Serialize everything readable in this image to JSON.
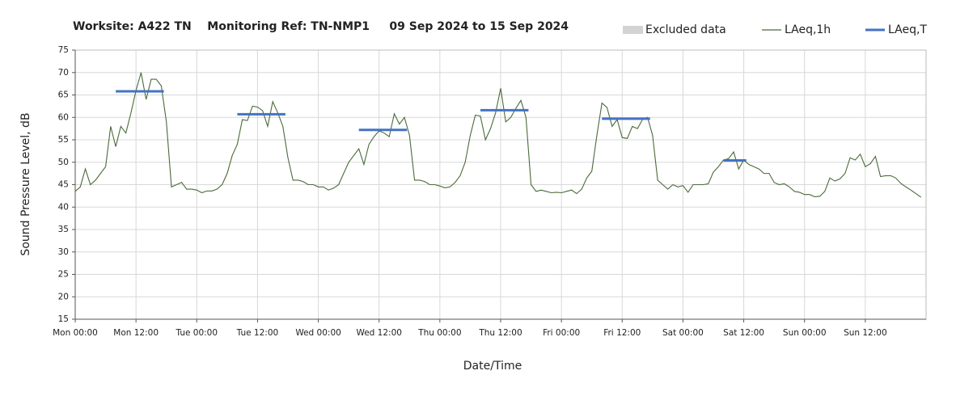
{
  "chart_data": {
    "type": "line",
    "title": "Worksite: A422 TN    Monitoring Ref: TN-NMP1     09 Sep 2024 to 15 Sep 2024",
    "xlabel": "Date/Time",
    "ylabel": "Sound Pressure Level, dB",
    "xlim": [
      0,
      168
    ],
    "ylim": [
      15,
      75
    ],
    "yticks": [
      15,
      20,
      25,
      30,
      35,
      40,
      45,
      50,
      55,
      60,
      65,
      70,
      75
    ],
    "xticks": [
      {
        "value": 0,
        "label": "Mon 00:00"
      },
      {
        "value": 12,
        "label": "Mon 12:00"
      },
      {
        "value": 24,
        "label": "Tue 00:00"
      },
      {
        "value": 36,
        "label": "Tue 12:00"
      },
      {
        "value": 48,
        "label": "Wed 00:00"
      },
      {
        "value": 60,
        "label": "Wed 12:00"
      },
      {
        "value": 72,
        "label": "Thu 00:00"
      },
      {
        "value": 84,
        "label": "Thu 12:00"
      },
      {
        "value": 96,
        "label": "Fri 00:00"
      },
      {
        "value": 108,
        "label": "Fri 12:00"
      },
      {
        "value": 120,
        "label": "Sat 00:00"
      },
      {
        "value": 132,
        "label": "Sat 12:00"
      },
      {
        "value": 144,
        "label": "Sun 00:00"
      },
      {
        "value": 156,
        "label": "Sun 12:00"
      }
    ],
    "grid": true,
    "series": [
      {
        "name": "LAeq,1h",
        "color": "#4a6b3a",
        "x": [
          0,
          1,
          2,
          3,
          4,
          5,
          6,
          7,
          8,
          9,
          10,
          11,
          12,
          13,
          14,
          15,
          16,
          17,
          18,
          19,
          20,
          21,
          22,
          23,
          24,
          25,
          26,
          27,
          28,
          29,
          30,
          31,
          32,
          33,
          34,
          35,
          36,
          37,
          38,
          39,
          40,
          41,
          42,
          43,
          44,
          45,
          46,
          47,
          48,
          49,
          50,
          51,
          52,
          53,
          54,
          55,
          56,
          57,
          58,
          59,
          60,
          61,
          62,
          63,
          64,
          65,
          66,
          67,
          68,
          69,
          70,
          71,
          72,
          73,
          74,
          75,
          76,
          77,
          78,
          79,
          80,
          81,
          82,
          83,
          84,
          85,
          86,
          87,
          88,
          89,
          90,
          91,
          92,
          93,
          94,
          95,
          96,
          97,
          98,
          99,
          100,
          101,
          102,
          103,
          104,
          105,
          106,
          107,
          108,
          109,
          110,
          111,
          112,
          113,
          114,
          115,
          116,
          117,
          118,
          119,
          120,
          121,
          122,
          123,
          124,
          125,
          126,
          127,
          128,
          129,
          130,
          131,
          132,
          133,
          134,
          135,
          136,
          137,
          138,
          139,
          140,
          141,
          142,
          143,
          144,
          145,
          146,
          147,
          148,
          149,
          150,
          151,
          152,
          153,
          154,
          155,
          156,
          157,
          158,
          159,
          160,
          161,
          162,
          163,
          164,
          165,
          166,
          167
        ],
        "values": [
          43.5,
          44.5,
          48.5,
          45,
          46,
          47.5,
          49,
          58,
          53.5,
          58,
          56.5,
          61,
          66,
          70,
          64,
          68.5,
          68.5,
          67,
          59,
          44.5,
          45,
          45.5,
          44,
          44,
          43.8,
          43.2,
          43.6,
          43.6,
          44,
          45,
          47.5,
          51.5,
          54,
          59.5,
          59.3,
          62.5,
          62.3,
          61.5,
          58,
          63.5,
          61,
          58,
          51,
          46,
          46,
          45.7,
          45,
          45,
          44.5,
          44.5,
          43.8,
          44.2,
          45,
          47.5,
          50,
          51.5,
          53,
          49.5,
          54,
          55.7,
          57,
          56.5,
          55.7,
          60.8,
          58.5,
          60,
          56,
          46,
          46,
          45.7,
          45,
          45,
          44.7,
          44.3,
          44.5,
          45.5,
          47,
          50,
          56,
          60.5,
          60.3,
          55,
          57.5,
          61,
          66.5,
          59,
          60,
          62,
          63.8,
          60,
          45,
          43.5,
          43.8,
          43.5,
          43.2,
          43.3,
          43.2,
          43.5,
          43.8,
          43,
          44,
          46.5,
          48,
          56,
          63.2,
          62.2,
          58,
          59.5,
          55.5,
          55.3,
          58,
          57.5,
          59.5,
          60,
          56,
          46,
          45,
          44,
          45,
          44.5,
          44.8,
          43.3,
          45,
          45,
          45,
          45.2,
          47.8,
          49,
          50.5,
          50.8,
          52.3,
          48.5,
          50.5,
          49.5,
          49,
          48.5,
          47.5,
          47.5,
          45.5,
          45,
          45.2,
          44.5,
          43.5,
          43.3,
          42.8,
          42.8,
          42.3,
          42.4,
          43.5,
          46.5,
          45.8,
          46.3,
          47.5,
          51,
          50.5,
          51.8,
          49,
          49.7,
          51.3,
          46.8,
          47,
          47,
          46.5,
          45.3,
          44.5,
          43.8,
          43,
          42.2
        ]
      },
      {
        "name": "LAeq,T",
        "color": "#4472c4",
        "periods": [
          {
            "start": 8,
            "end": 17.5,
            "value": 65.8
          },
          {
            "start": 32,
            "end": 41.5,
            "value": 60.7
          },
          {
            "start": 56,
            "end": 65.5,
            "value": 57.2
          },
          {
            "start": 80,
            "end": 89.5,
            "value": 61.6
          },
          {
            "start": 104,
            "end": 113.5,
            "value": 59.7
          },
          {
            "start": 128,
            "end": 132.5,
            "value": 50.4
          }
        ]
      },
      {
        "name": "Excluded data",
        "color": "#d3d3d3",
        "values": []
      }
    ]
  }
}
